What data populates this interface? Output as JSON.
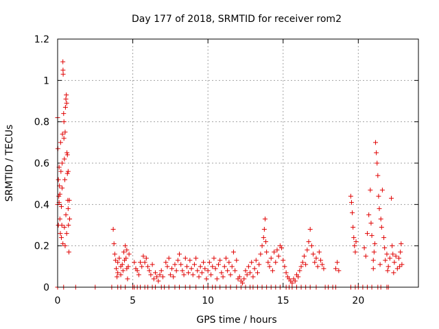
{
  "chart_data": {
    "type": "scatter",
    "title": "Day 177 of 2018, SRMTID for receiver rom2",
    "xlabel": "GPS time / hours",
    "ylabel": "SRMTID / TECUs",
    "xlim": [
      0,
      24
    ],
    "ylim": [
      0,
      1.2
    ],
    "xticks": [
      0,
      5,
      10,
      15,
      20
    ],
    "xtick_labels": [
      "0",
      "5",
      "10",
      "15",
      "20"
    ],
    "yticks": [
      0,
      0.2,
      0.4,
      0.6,
      0.8,
      1,
      1.2
    ],
    "ytick_labels": [
      "0",
      "0.2",
      "0.4",
      "0.6",
      "0.8",
      "1",
      "1.2"
    ],
    "grid": true,
    "marker": "plus",
    "color": "#e00000",
    "series": [
      {
        "name": "SRMTID",
        "points": [
          [
            0.0,
            0.82
          ],
          [
            0.02,
            0.67
          ],
          [
            0.05,
            0.52
          ],
          [
            0.08,
            0.44
          ],
          [
            0.1,
            0.41
          ],
          [
            0.12,
            0.49
          ],
          [
            0.15,
            0.33
          ],
          [
            0.18,
            0.26
          ],
          [
            0.2,
            0.7
          ],
          [
            0.22,
            0.56
          ],
          [
            0.25,
            0.39
          ],
          [
            0.28,
            0.3
          ],
          [
            0.3,
            0.6
          ],
          [
            0.32,
            0.74
          ],
          [
            0.35,
            1.09
          ],
          [
            0.36,
            1.05
          ],
          [
            0.37,
            1.03
          ],
          [
            0.4,
            0.84
          ],
          [
            0.42,
            0.8
          ],
          [
            0.45,
            0.62
          ],
          [
            0.48,
            0.52
          ],
          [
            0.5,
            0.75
          ],
          [
            0.52,
            0.87
          ],
          [
            0.55,
            0.91
          ],
          [
            0.58,
            0.93
          ],
          [
            0.6,
            0.89
          ],
          [
            0.62,
            0.65
          ],
          [
            0.65,
            0.55
          ],
          [
            0.68,
            0.42
          ],
          [
            0.7,
            0.38
          ],
          [
            0.72,
            0.3
          ],
          [
            0.75,
            0.17
          ],
          [
            0.0,
            0.4
          ],
          [
            0.05,
            0.3
          ],
          [
            0.15,
            0.45
          ],
          [
            0.25,
            0.24
          ],
          [
            0.35,
            0.21
          ],
          [
            0.45,
            0.29
          ],
          [
            0.55,
            0.35
          ],
          [
            0.65,
            0.64
          ],
          [
            0.7,
            0.56
          ],
          [
            0.78,
            0.42
          ],
          [
            0.8,
            0.33
          ],
          [
            0.1,
            0.58
          ],
          [
            0.3,
            0.48
          ],
          [
            0.5,
            0.2
          ],
          [
            0.6,
            0.26
          ],
          [
            0.42,
            0.72
          ],
          [
            3.7,
            0.28
          ],
          [
            3.75,
            0.21
          ],
          [
            3.8,
            0.16
          ],
          [
            3.85,
            0.13
          ],
          [
            3.9,
            0.09
          ],
          [
            4.0,
            0.07
          ],
          [
            4.1,
            0.14
          ],
          [
            4.2,
            0.06
          ],
          [
            4.3,
            0.11
          ],
          [
            4.4,
            0.17
          ],
          [
            4.5,
            0.2
          ],
          [
            4.55,
            0.14
          ],
          [
            4.6,
            0.09
          ],
          [
            4.65,
            0.04
          ],
          [
            4.7,
            0.1
          ],
          [
            4.75,
            0.16
          ],
          [
            4.0,
            0.12
          ],
          [
            4.2,
            0.1
          ],
          [
            4.45,
            0.13
          ],
          [
            4.6,
            0.18
          ],
          [
            3.95,
            0.05
          ],
          [
            4.35,
            0.08
          ],
          [
            5.1,
            0.12
          ],
          [
            5.2,
            0.09
          ],
          [
            5.3,
            0.08
          ],
          [
            5.4,
            0.06
          ],
          [
            5.5,
            0.12
          ],
          [
            5.6,
            0.1
          ],
          [
            5.7,
            0.15
          ],
          [
            5.8,
            0.12
          ],
          [
            5.9,
            0.14
          ],
          [
            6.0,
            0.1
          ],
          [
            6.1,
            0.08
          ],
          [
            6.2,
            0.06
          ],
          [
            6.3,
            0.11
          ],
          [
            6.4,
            0.04
          ],
          [
            6.5,
            0.07
          ],
          [
            6.6,
            0.05
          ],
          [
            6.7,
            0.03
          ],
          [
            6.8,
            0.06
          ],
          [
            6.9,
            0.08
          ],
          [
            7.0,
            0.05
          ],
          [
            7.2,
            0.12
          ],
          [
            7.3,
            0.1
          ],
          [
            7.4,
            0.14
          ],
          [
            7.5,
            0.06
          ],
          [
            7.6,
            0.09
          ],
          [
            7.7,
            0.05
          ],
          [
            7.8,
            0.11
          ],
          [
            7.9,
            0.08
          ],
          [
            8.0,
            0.13
          ],
          [
            8.1,
            0.16
          ],
          [
            8.2,
            0.11
          ],
          [
            8.3,
            0.08
          ],
          [
            8.4,
            0.06
          ],
          [
            8.5,
            0.14
          ],
          [
            8.6,
            0.1
          ],
          [
            8.7,
            0.07
          ],
          [
            8.8,
            0.13
          ],
          [
            8.9,
            0.09
          ],
          [
            9.0,
            0.06
          ],
          [
            9.1,
            0.11
          ],
          [
            9.2,
            0.14
          ],
          [
            9.3,
            0.08
          ],
          [
            9.4,
            0.05
          ],
          [
            9.5,
            0.1
          ],
          [
            9.6,
            0.07
          ],
          [
            9.7,
            0.12
          ],
          [
            9.8,
            0.09
          ],
          [
            9.9,
            0.04
          ],
          [
            10.0,
            0.08
          ],
          [
            10.1,
            0.12
          ],
          [
            10.2,
            0.06
          ],
          [
            10.3,
            0.1
          ],
          [
            10.4,
            0.14
          ],
          [
            10.5,
            0.09
          ],
          [
            10.6,
            0.04
          ],
          [
            10.7,
            0.11
          ],
          [
            10.8,
            0.13
          ],
          [
            10.9,
            0.07
          ],
          [
            11.0,
            0.05
          ],
          [
            11.1,
            0.1
          ],
          [
            11.2,
            0.14
          ],
          [
            11.3,
            0.08
          ],
          [
            11.4,
            0.12
          ],
          [
            11.5,
            0.06
          ],
          [
            11.6,
            0.1
          ],
          [
            11.7,
            0.17
          ],
          [
            11.8,
            0.08
          ],
          [
            11.9,
            0.13
          ],
          [
            12.0,
            0.04
          ],
          [
            12.1,
            0.05
          ],
          [
            12.2,
            0.03
          ],
          [
            12.3,
            0.02
          ],
          [
            12.4,
            0.04
          ],
          [
            12.5,
            0.08
          ],
          [
            12.6,
            0.06
          ],
          [
            12.7,
            0.1
          ],
          [
            12.8,
            0.07
          ],
          [
            12.9,
            0.12
          ],
          [
            13.0,
            0.05
          ],
          [
            13.1,
            0.09
          ],
          [
            13.2,
            0.13
          ],
          [
            13.3,
            0.07
          ],
          [
            13.4,
            0.11
          ],
          [
            13.5,
            0.16
          ],
          [
            13.6,
            0.2
          ],
          [
            13.7,
            0.24
          ],
          [
            13.75,
            0.28
          ],
          [
            13.8,
            0.33
          ],
          [
            13.85,
            0.22
          ],
          [
            13.9,
            0.17
          ],
          [
            14.0,
            0.12
          ],
          [
            14.1,
            0.1
          ],
          [
            14.2,
            0.14
          ],
          [
            14.3,
            0.08
          ],
          [
            14.4,
            0.17
          ],
          [
            14.5,
            0.12
          ],
          [
            14.6,
            0.18
          ],
          [
            14.7,
            0.15
          ],
          [
            14.8,
            0.2
          ],
          [
            14.9,
            0.19
          ],
          [
            15.0,
            0.13
          ],
          [
            15.1,
            0.1
          ],
          [
            15.2,
            0.07
          ],
          [
            15.3,
            0.05
          ],
          [
            15.4,
            0.04
          ],
          [
            15.5,
            0.03
          ],
          [
            15.6,
            0.02
          ],
          [
            15.7,
            0.04
          ],
          [
            15.8,
            0.03
          ],
          [
            15.9,
            0.06
          ],
          [
            16.0,
            0.05
          ],
          [
            16.1,
            0.08
          ],
          [
            16.2,
            0.1
          ],
          [
            16.3,
            0.12
          ],
          [
            16.4,
            0.15
          ],
          [
            16.5,
            0.11
          ],
          [
            16.6,
            0.18
          ],
          [
            16.7,
            0.22
          ],
          [
            16.8,
            0.28
          ],
          [
            16.9,
            0.2
          ],
          [
            17.0,
            0.16
          ],
          [
            17.1,
            0.12
          ],
          [
            17.2,
            0.14
          ],
          [
            17.3,
            0.1
          ],
          [
            17.4,
            0.17
          ],
          [
            17.5,
            0.13
          ],
          [
            17.6,
            0.11
          ],
          [
            17.7,
            0.09
          ],
          [
            18.5,
            0.09
          ],
          [
            18.6,
            0.12
          ],
          [
            18.7,
            0.08
          ],
          [
            19.5,
            0.44
          ],
          [
            19.55,
            0.41
          ],
          [
            19.6,
            0.36
          ],
          [
            19.65,
            0.29
          ],
          [
            19.7,
            0.24
          ],
          [
            19.75,
            0.2
          ],
          [
            19.8,
            0.17
          ],
          [
            19.85,
            0.22
          ],
          [
            20.4,
            0.19
          ],
          [
            20.6,
            0.26
          ],
          [
            20.7,
            0.35
          ],
          [
            20.8,
            0.47
          ],
          [
            20.85,
            0.31
          ],
          [
            20.9,
            0.25
          ],
          [
            21.0,
            0.13
          ],
          [
            21.05,
            0.17
          ],
          [
            21.1,
            0.21
          ],
          [
            21.15,
            0.7
          ],
          [
            21.2,
            0.65
          ],
          [
            21.25,
            0.6
          ],
          [
            21.3,
            0.54
          ],
          [
            21.35,
            0.44
          ],
          [
            21.4,
            0.38
          ],
          [
            21.5,
            0.33
          ],
          [
            21.55,
            0.29
          ],
          [
            21.6,
            0.47
          ],
          [
            21.7,
            0.24
          ],
          [
            21.75,
            0.19
          ],
          [
            21.8,
            0.13
          ],
          [
            21.9,
            0.16
          ],
          [
            22.0,
            0.1
          ],
          [
            22.1,
            0.14
          ],
          [
            22.2,
            0.43
          ],
          [
            22.25,
            0.2
          ],
          [
            22.3,
            0.16
          ],
          [
            22.4,
            0.12
          ],
          [
            22.5,
            0.15
          ],
          [
            22.6,
            0.09
          ],
          [
            22.7,
            0.14
          ],
          [
            22.8,
            0.17
          ],
          [
            22.85,
            0.21
          ],
          [
            22.9,
            0.11
          ],
          [
            20.5,
            0.15
          ],
          [
            21.0,
            0.09
          ],
          [
            21.45,
            0.11
          ],
          [
            21.95,
            0.08
          ],
          [
            22.35,
            0.07
          ],
          [
            22.75,
            0.1
          ],
          [
            0.0,
            0.0
          ],
          [
            0.4,
            0.0
          ],
          [
            1.2,
            0.0
          ],
          [
            2.5,
            0.0
          ],
          [
            3.6,
            0.0
          ],
          [
            4.0,
            0.0
          ],
          [
            4.2,
            0.0
          ],
          [
            4.5,
            0.0
          ],
          [
            5.0,
            0.0
          ],
          [
            5.1,
            0.0
          ],
          [
            5.3,
            0.0
          ],
          [
            5.5,
            0.0
          ],
          [
            5.8,
            0.0
          ],
          [
            6.0,
            0.0
          ],
          [
            6.3,
            0.0
          ],
          [
            6.5,
            0.0
          ],
          [
            6.9,
            0.0
          ],
          [
            7.1,
            0.0
          ],
          [
            7.4,
            0.0
          ],
          [
            7.8,
            0.0
          ],
          [
            8.1,
            0.0
          ],
          [
            8.5,
            0.0
          ],
          [
            8.8,
            0.0
          ],
          [
            9.2,
            0.0
          ],
          [
            9.7,
            0.0
          ],
          [
            10.0,
            0.0
          ],
          [
            10.3,
            0.0
          ],
          [
            10.5,
            0.0
          ],
          [
            10.8,
            0.0
          ],
          [
            11.2,
            0.0
          ],
          [
            11.5,
            0.0
          ],
          [
            11.9,
            0.0
          ],
          [
            12.2,
            0.0
          ],
          [
            12.5,
            0.0
          ],
          [
            12.8,
            0.0
          ],
          [
            13.0,
            0.0
          ],
          [
            13.3,
            0.0
          ],
          [
            13.6,
            0.0
          ],
          [
            13.9,
            0.0
          ],
          [
            14.2,
            0.0
          ],
          [
            14.5,
            0.0
          ],
          [
            14.8,
            0.0
          ],
          [
            15.2,
            0.0
          ],
          [
            15.4,
            0.0
          ],
          [
            15.6,
            0.0
          ],
          [
            15.9,
            0.0
          ],
          [
            16.2,
            0.0
          ],
          [
            16.5,
            0.0
          ],
          [
            16.8,
            0.0
          ],
          [
            17.2,
            0.0
          ],
          [
            17.8,
            0.0
          ],
          [
            18.0,
            0.0
          ],
          [
            18.3,
            0.0
          ],
          [
            18.5,
            0.0
          ],
          [
            19.5,
            0.0
          ],
          [
            19.8,
            0.0
          ],
          [
            20.0,
            0.0
          ],
          [
            20.3,
            0.0
          ],
          [
            20.6,
            0.0
          ],
          [
            20.9,
            0.0
          ],
          [
            21.3,
            0.0
          ],
          [
            21.5,
            0.0
          ],
          [
            21.9,
            0.0
          ],
          [
            22.0,
            0.0
          ]
        ]
      }
    ]
  }
}
